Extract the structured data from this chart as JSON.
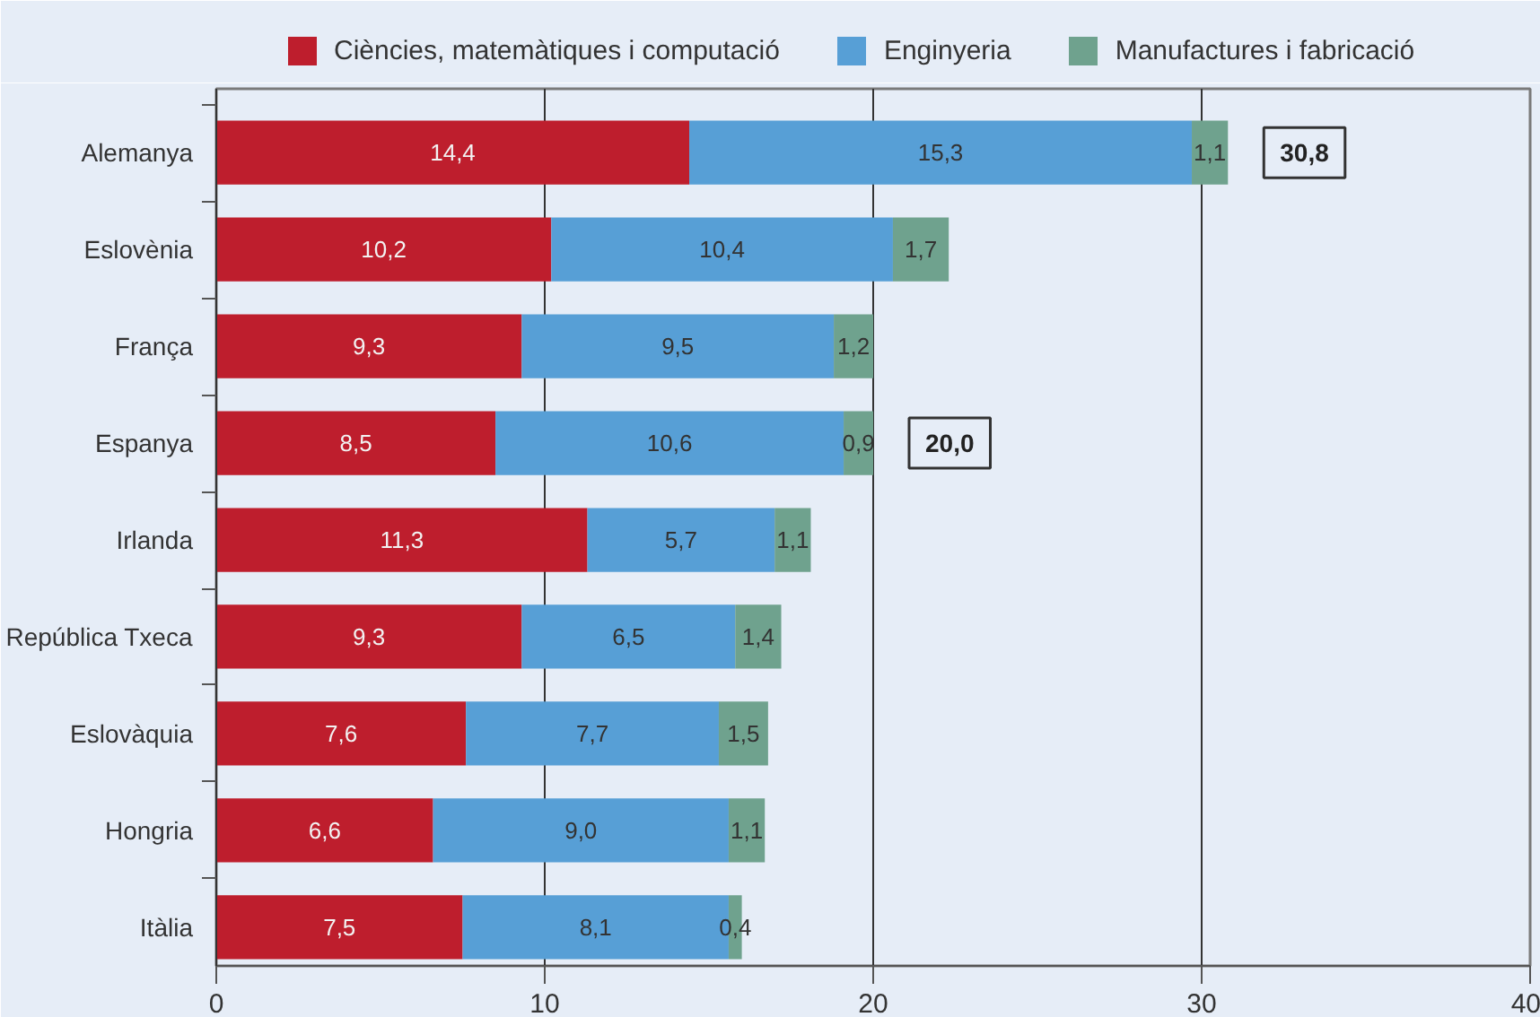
{
  "chart_data": {
    "type": "bar",
    "orientation": "horizontal",
    "stacked": true,
    "categories": [
      "Alemanya",
      "Eslovènia",
      "França",
      "Espanya",
      "Irlanda",
      "República Txeca",
      "Eslovàquia",
      "Hongria",
      "Itàlia"
    ],
    "series": [
      {
        "name": "Ciències, matemàtiques i computació",
        "color": "#be1e2d",
        "values": [
          14.4,
          10.2,
          9.3,
          8.5,
          11.3,
          9.3,
          7.6,
          6.6,
          7.5
        ],
        "value_labels": [
          "14,4",
          "10,2",
          "9,3",
          "8,5",
          "11,3",
          "9,3",
          "7,6",
          "6,6",
          "7,5"
        ]
      },
      {
        "name": "Enginyeria",
        "color": "#579fd6",
        "values": [
          15.3,
          10.4,
          9.5,
          10.6,
          5.7,
          6.5,
          7.7,
          9.0,
          8.1
        ],
        "value_labels": [
          "15,3",
          "10,4",
          "9,5",
          "10,6",
          "5,7",
          "6,5",
          "7,7",
          "9,0",
          "8,1"
        ]
      },
      {
        "name": "Manufactures i fabricació",
        "color": "#6fa28e",
        "values": [
          1.1,
          1.7,
          1.2,
          0.9,
          1.1,
          1.4,
          1.5,
          1.1,
          0.4
        ],
        "value_labels": [
          "1,1",
          "1,7",
          "1,2",
          "0,9",
          "1,1",
          "1,4",
          "1,5",
          "1,1",
          "0,4"
        ]
      }
    ],
    "totals": [
      "30,8",
      null,
      null,
      "20,0",
      null,
      null,
      null,
      null,
      null
    ],
    "xlim": [
      0,
      40
    ],
    "xticks": [
      0,
      10,
      20,
      30,
      40
    ],
    "grid": "x",
    "legend": "top"
  }
}
